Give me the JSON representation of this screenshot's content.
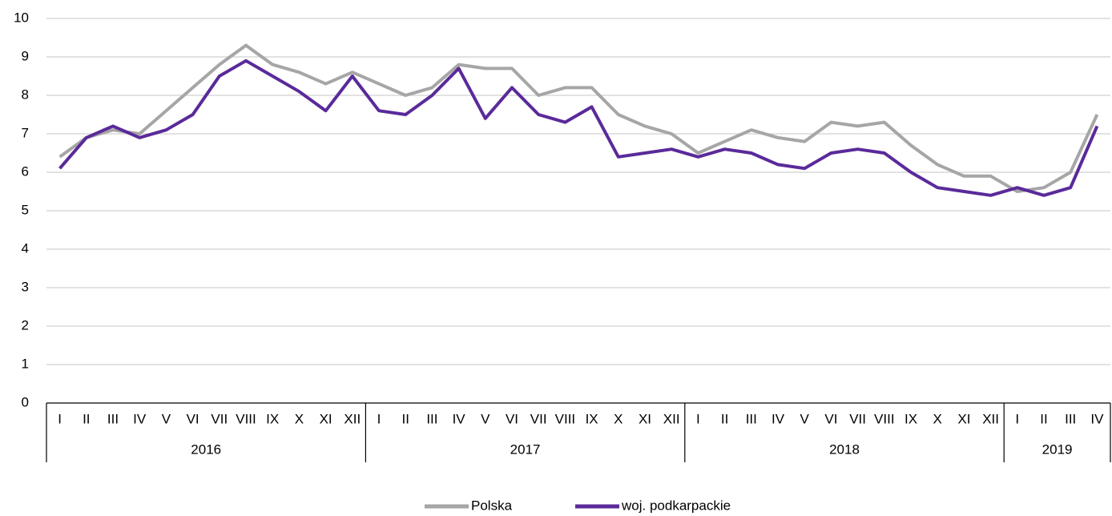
{
  "chart_data": {
    "type": "line",
    "category_groups": [
      {
        "label": "2016",
        "categories": [
          "I",
          "II",
          "III",
          "IV",
          "V",
          "VI",
          "VII",
          "VIII",
          "IX",
          "X",
          "XI",
          "XII"
        ]
      },
      {
        "label": "2017",
        "categories": [
          "I",
          "II",
          "III",
          "IV",
          "V",
          "VI",
          "VII",
          "VIII",
          "IX",
          "X",
          "XI",
          "XII"
        ]
      },
      {
        "label": "2018",
        "categories": [
          "I",
          "II",
          "III",
          "IV",
          "V",
          "VI",
          "VII",
          "VIII",
          "IX",
          "X",
          "XI",
          "XII"
        ]
      },
      {
        "label": "2019",
        "categories": [
          "I",
          "II",
          "III",
          "IV"
        ]
      }
    ],
    "series": [
      {
        "name": "Polska",
        "color": "#a6a6a6",
        "values": [
          6.4,
          6.9,
          7.1,
          7.0,
          7.6,
          8.2,
          8.8,
          9.3,
          8.8,
          8.6,
          8.3,
          8.6,
          8.3,
          8.0,
          8.2,
          8.8,
          8.7,
          8.7,
          8.0,
          8.2,
          8.2,
          7.5,
          7.2,
          7.0,
          6.5,
          6.8,
          7.1,
          6.9,
          6.8,
          7.3,
          7.2,
          7.3,
          6.7,
          6.2,
          5.9,
          5.9,
          5.5,
          5.6,
          6.0,
          7.5
        ]
      },
      {
        "name": "woj. podkarpackie",
        "color": "#5a2a9a",
        "values": [
          6.1,
          6.9,
          7.2,
          6.9,
          7.1,
          7.5,
          8.5,
          8.9,
          8.5,
          8.1,
          7.6,
          8.5,
          7.6,
          7.5,
          8.0,
          8.7,
          7.4,
          8.2,
          7.5,
          7.3,
          7.7,
          6.4,
          6.5,
          6.6,
          6.4,
          6.6,
          6.5,
          6.2,
          6.1,
          6.5,
          6.6,
          6.5,
          6.0,
          5.6,
          5.5,
          5.4,
          5.6,
          5.4,
          5.6,
          7.2
        ]
      }
    ],
    "ylim": [
      0,
      10
    ],
    "yticks": [
      0,
      1,
      2,
      3,
      4,
      5,
      6,
      7,
      8,
      9,
      10
    ],
    "grid": true,
    "legend": "bottom"
  }
}
